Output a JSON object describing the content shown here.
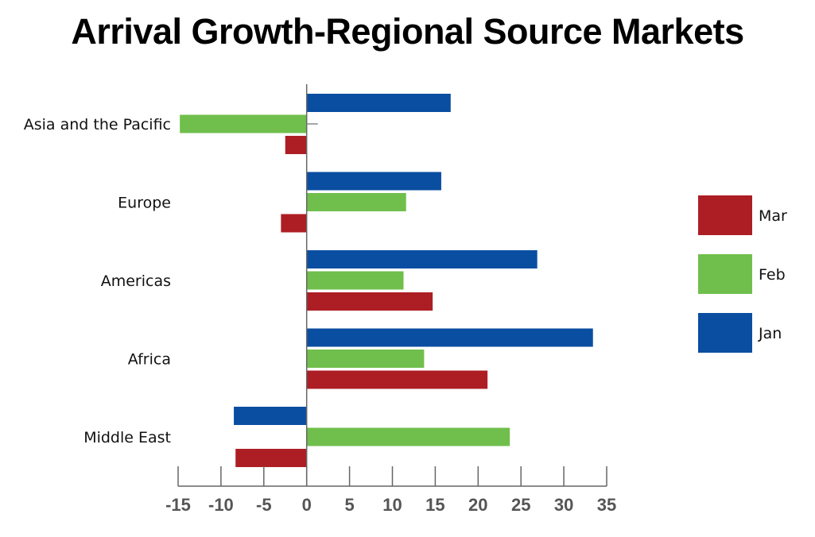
{
  "chart_data": {
    "type": "bar",
    "orientation": "horizontal",
    "title": "Arrival Growth-Regional Source Markets",
    "xlabel": "",
    "ylabel": "",
    "xlim": [
      -15,
      35
    ],
    "xticks": [
      -15,
      -10,
      -5,
      0,
      5,
      10,
      15,
      20,
      25,
      30,
      35
    ],
    "tick_labels": [
      "-15",
      "-10",
      "-5",
      "0",
      "5",
      "10",
      "15",
      "20",
      "25",
      "30",
      "35"
    ],
    "categories": [
      "Asia and the Pacific",
      "Europe",
      "Americas",
      "Africa",
      "Middle East"
    ],
    "series": [
      {
        "name": "Jan",
        "color": "#0a4ea1",
        "values": [
          16.8,
          15.7,
          26.9,
          33.4,
          -8.5
        ]
      },
      {
        "name": "Feb",
        "color": "#70bf4c",
        "values": [
          -14.8,
          11.6,
          11.3,
          13.7,
          23.7
        ]
      },
      {
        "name": "Mar",
        "color": "#ad1e24",
        "values": [
          -2.5,
          -3.0,
          14.7,
          21.1,
          -8.3
        ]
      }
    ],
    "legend": {
      "position": "right",
      "order": [
        "Mar",
        "Feb",
        "Jan"
      ]
    },
    "grid": false
  }
}
